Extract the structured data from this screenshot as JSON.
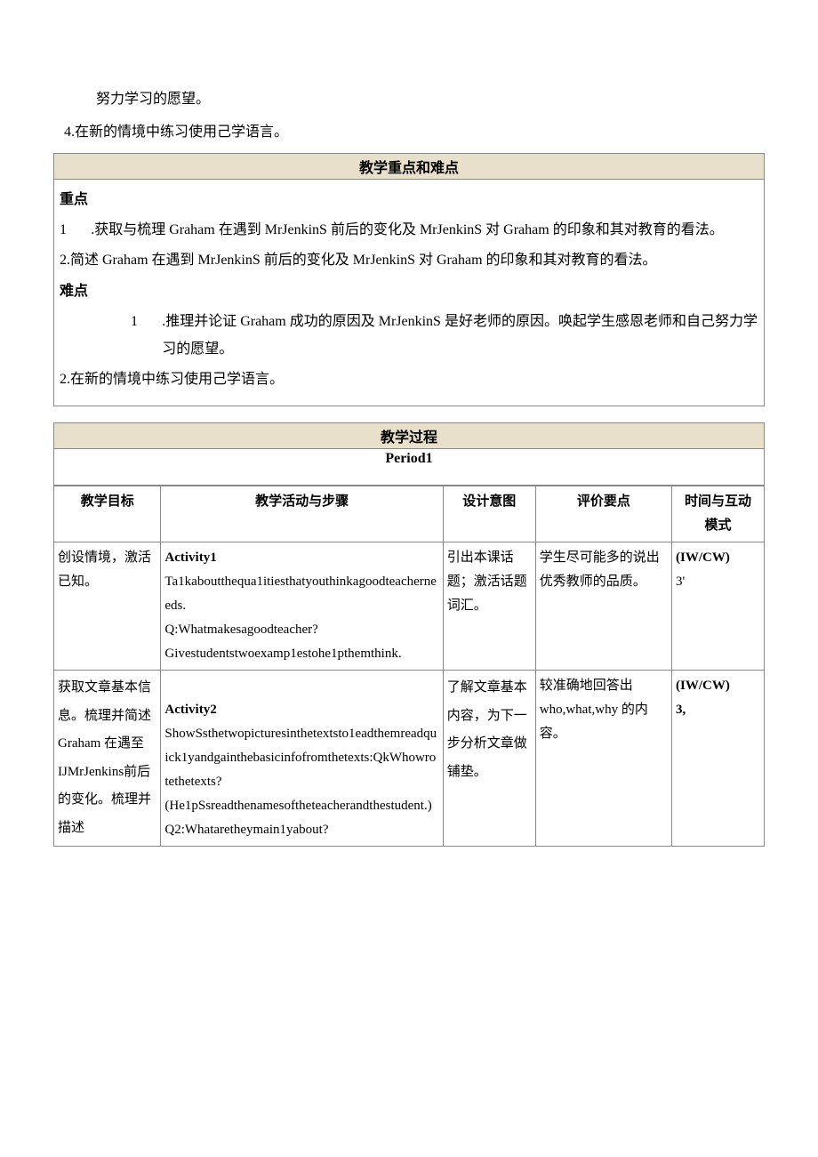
{
  "preText": {
    "line1": "努力学习的愿望。",
    "line2": "4.在新的情境中练习使用己学语言。"
  },
  "sections": {
    "keypointsHeader": "教学重点和难点",
    "zhongdianLabel": "重点",
    "zhongdian1Num": "1",
    "zhongdian1": ".获取与梳理 Graham 在遇到 MrJenkinS 前后的变化及 MrJenkinS 对 Graham 的印象和其对教育的看法。",
    "zhongdian2": "2.简述 Graham 在遇到 MrJenkinS 前后的变化及 MrJenkinS 对 Graham 的印象和其对教育的看法。",
    "nandianLabel": "难点",
    "nandian1Num": "1",
    "nandian1": ".推理并论证 Graham 成功的原因及 MrJenkinS 是好老师的原因。唤起学生感恩老师和自己努力学习的愿望。",
    "nandian2": "2.在新的情境中练习使用己学语言。",
    "processHeader": "教学过程",
    "periodLabel": "Period1"
  },
  "tableHeaders": {
    "h1": "教学目标",
    "h2": "教学活动与步骤",
    "h3": "设计意图",
    "h4": "评价要点",
    "h5a": "时间与互动",
    "h5b": "模式"
  },
  "rows": [
    {
      "goal": "创设情境，激活已知。",
      "activityTitle": "Activity1",
      "activityBody": "Ta1kaboutthequa1itiesthatyouthinkagoodteacherneeds.\nQ:Whatmakesagoodteacher?\nGivestudentstwoexamp1estohe1pthemthink.",
      "intent": "引出本课话题；激活话题词汇。",
      "eval": "学生尽可能多的说出优秀教师的品质。",
      "timeA": "(IW/CW)",
      "timeB": "3'"
    },
    {
      "goal": "获取文章基本信息。梳理并简述Graham 在遇至IJMrJenkins前后的变化。梳理并描述",
      "activityTitle": "Activity2",
      "activityBody": "ShowSsthetwopicturesinthetextsto1eadthemreadquick1yandgainthebasicinfofromthetexts:QkWhowrotethetexts?\n  (He1pSsreadthenamesoftheteacherandthestudent.)Q2:Whataretheymain1yabout?",
      "intent": "了解文章基本内容，为下一步分析文章做铺垫。",
      "eval": "较准确地回答出who,what,why 的内容。",
      "timeA": "(IW/CW)",
      "timeB": "3,"
    }
  ],
  "colors": {
    "headerBg": "#e8e0ca",
    "border": "#888888",
    "text": "#000000",
    "background": "#ffffff"
  }
}
